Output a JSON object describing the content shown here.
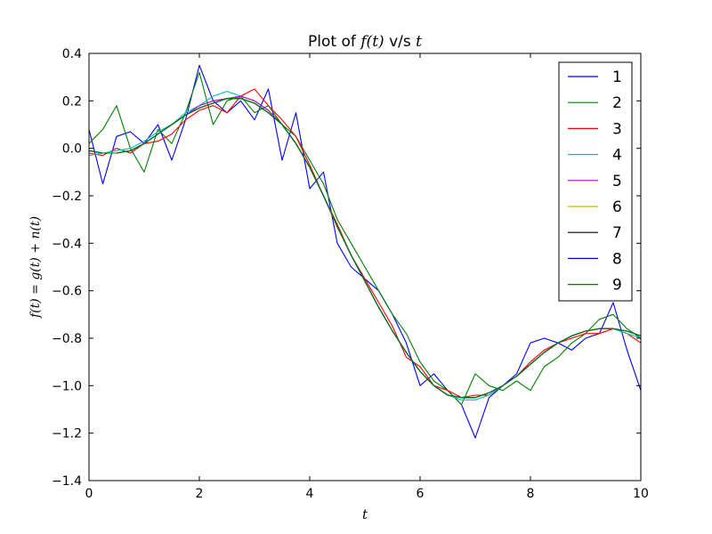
{
  "chart_data": {
    "type": "line",
    "title_prefix": "Plot of",
    "title_math": "f(t)",
    "title_mid": "v/s",
    "title_var": "t",
    "xlabel": "t",
    "ylabel": "f(t) = g(t) + n(t)",
    "xlim": [
      0,
      10
    ],
    "ylim": [
      -1.4,
      0.4
    ],
    "xticks": [
      0,
      2,
      4,
      6,
      8,
      10
    ],
    "xtick_labels": [
      "0",
      "2",
      "4",
      "6",
      "8",
      "10"
    ],
    "yticks": [
      0.4,
      0.2,
      0.0,
      -0.2,
      -0.4,
      -0.6,
      -0.8,
      -1.0,
      -1.2,
      -1.4
    ],
    "ytick_labels": [
      "0.4",
      "0.2",
      "0.0",
      "−0.2",
      "−0.4",
      "−0.6",
      "−0.8",
      "−1.0",
      "−1.2",
      "−1.4"
    ],
    "grid": false,
    "legend_position": "top-right",
    "x": [
      0,
      0.25,
      0.5,
      0.75,
      1,
      1.25,
      1.5,
      1.75,
      2,
      2.25,
      2.5,
      2.75,
      3,
      3.25,
      3.5,
      3.75,
      4,
      4.25,
      4.5,
      4.75,
      5,
      5.25,
      5.5,
      5.75,
      6,
      6.25,
      6.5,
      6.75,
      7,
      7.25,
      7.5,
      7.75,
      8,
      8.25,
      8.5,
      8.75,
      9,
      9.25,
      9.5,
      9.75,
      10
    ],
    "series": [
      {
        "name": "1",
        "color": "#0000ff",
        "values": [
          0.08,
          -0.15,
          0.05,
          0.07,
          0.02,
          0.1,
          -0.05,
          0.12,
          0.35,
          0.2,
          0.15,
          0.2,
          0.12,
          0.25,
          -0.05,
          0.15,
          -0.17,
          -0.1,
          -0.4,
          -0.5,
          -0.55,
          -0.6,
          -0.7,
          -0.82,
          -1.0,
          -0.95,
          -1.02,
          -1.08,
          -1.22,
          -1.05,
          -1.0,
          -0.95,
          -0.82,
          -0.8,
          -0.82,
          -0.85,
          -0.8,
          -0.78,
          -0.65,
          -0.85,
          -1.02
        ]
      },
      {
        "name": "2",
        "color": "#008000",
        "values": [
          0.02,
          0.08,
          0.18,
          0.0,
          -0.1,
          0.08,
          0.02,
          0.15,
          0.32,
          0.1,
          0.2,
          0.22,
          0.15,
          0.18,
          0.1,
          0.05,
          -0.05,
          -0.15,
          -0.3,
          -0.4,
          -0.5,
          -0.6,
          -0.7,
          -0.78,
          -0.9,
          -0.98,
          -1.02,
          -1.08,
          -0.95,
          -1.0,
          -1.02,
          -0.98,
          -1.02,
          -0.92,
          -0.88,
          -0.82,
          -0.78,
          -0.72,
          -0.7,
          -0.76,
          -0.8
        ]
      },
      {
        "name": "3",
        "color": "#ff0000",
        "values": [
          -0.02,
          -0.03,
          0.0,
          -0.02,
          0.02,
          0.03,
          0.06,
          0.12,
          0.16,
          0.18,
          0.15,
          0.22,
          0.25,
          0.18,
          0.12,
          0.05,
          -0.07,
          -0.2,
          -0.32,
          -0.45,
          -0.55,
          -0.65,
          -0.75,
          -0.88,
          -0.92,
          -1.0,
          -1.02,
          -1.05,
          -1.04,
          -1.04,
          -1.0,
          -0.96,
          -0.9,
          -0.85,
          -0.82,
          -0.8,
          -0.78,
          -0.78,
          -0.76,
          -0.78,
          -0.82
        ]
      },
      {
        "name": "4",
        "color": "#00bfbf",
        "values": [
          -0.03,
          -0.02,
          -0.01,
          0.0,
          0.03,
          0.07,
          0.1,
          0.15,
          0.18,
          0.22,
          0.24,
          0.22,
          0.2,
          0.16,
          0.1,
          0.02,
          -0.08,
          -0.2,
          -0.33,
          -0.45,
          -0.56,
          -0.67,
          -0.77,
          -0.86,
          -0.94,
          -1.0,
          -1.04,
          -1.06,
          -1.06,
          -1.04,
          -1.0,
          -0.96,
          -0.91,
          -0.86,
          -0.82,
          -0.79,
          -0.77,
          -0.76,
          -0.76,
          -0.78,
          -0.8
        ]
      },
      {
        "name": "5",
        "color": "#bf00bf",
        "values": [
          -0.01,
          -0.02,
          -0.02,
          -0.01,
          0.02,
          0.06,
          0.1,
          0.14,
          0.18,
          0.2,
          0.21,
          0.22,
          0.2,
          0.16,
          0.1,
          0.02,
          -0.08,
          -0.2,
          -0.33,
          -0.45,
          -0.56,
          -0.67,
          -0.77,
          -0.86,
          -0.94,
          -1.0,
          -1.04,
          -1.05,
          -1.05,
          -1.03,
          -1.0,
          -0.96,
          -0.91,
          -0.86,
          -0.82,
          -0.79,
          -0.77,
          -0.76,
          -0.76,
          -0.77,
          -0.79
        ]
      },
      {
        "name": "6",
        "color": "#bfbf00",
        "values": [
          -0.01,
          -0.02,
          -0.02,
          -0.01,
          0.02,
          0.06,
          0.1,
          0.14,
          0.17,
          0.19,
          0.21,
          0.21,
          0.19,
          0.15,
          0.1,
          0.02,
          -0.08,
          -0.2,
          -0.33,
          -0.45,
          -0.56,
          -0.67,
          -0.77,
          -0.86,
          -0.94,
          -1.0,
          -1.04,
          -1.05,
          -1.05,
          -1.03,
          -1.0,
          -0.96,
          -0.91,
          -0.86,
          -0.82,
          -0.79,
          -0.77,
          -0.76,
          -0.76,
          -0.77,
          -0.79
        ]
      },
      {
        "name": "7",
        "color": "#000000",
        "values": [
          -0.01,
          -0.02,
          -0.02,
          -0.01,
          0.02,
          0.06,
          0.1,
          0.14,
          0.17,
          0.19,
          0.21,
          0.21,
          0.19,
          0.15,
          0.1,
          0.02,
          -0.08,
          -0.2,
          -0.33,
          -0.45,
          -0.56,
          -0.67,
          -0.77,
          -0.86,
          -0.94,
          -1.0,
          -1.04,
          -1.05,
          -1.05,
          -1.03,
          -1.0,
          -0.96,
          -0.91,
          -0.86,
          -0.82,
          -0.79,
          -0.77,
          -0.76,
          -0.76,
          -0.77,
          -0.79
        ]
      },
      {
        "name": "8",
        "color": "#0000ff",
        "values": [
          -0.01,
          -0.02,
          -0.02,
          -0.01,
          0.02,
          0.06,
          0.1,
          0.14,
          0.17,
          0.19,
          0.21,
          0.21,
          0.19,
          0.15,
          0.1,
          0.02,
          -0.08,
          -0.2,
          -0.33,
          -0.45,
          -0.56,
          -0.67,
          -0.77,
          -0.86,
          -0.94,
          -1.0,
          -1.04,
          -1.05,
          -1.05,
          -1.03,
          -1.0,
          -0.96,
          -0.91,
          -0.86,
          -0.82,
          -0.79,
          -0.77,
          -0.76,
          -0.76,
          -0.77,
          -0.79
        ]
      },
      {
        "name": "9",
        "color": "#008000",
        "values": [
          -0.01,
          -0.02,
          -0.02,
          -0.01,
          0.02,
          0.06,
          0.1,
          0.14,
          0.17,
          0.19,
          0.21,
          0.21,
          0.19,
          0.15,
          0.1,
          0.02,
          -0.08,
          -0.2,
          -0.33,
          -0.45,
          -0.56,
          -0.67,
          -0.77,
          -0.86,
          -0.94,
          -1.0,
          -1.04,
          -1.05,
          -1.05,
          -1.03,
          -1.0,
          -0.96,
          -0.91,
          -0.86,
          -0.82,
          -0.79,
          -0.77,
          -0.76,
          -0.76,
          -0.77,
          -0.79
        ]
      }
    ]
  }
}
